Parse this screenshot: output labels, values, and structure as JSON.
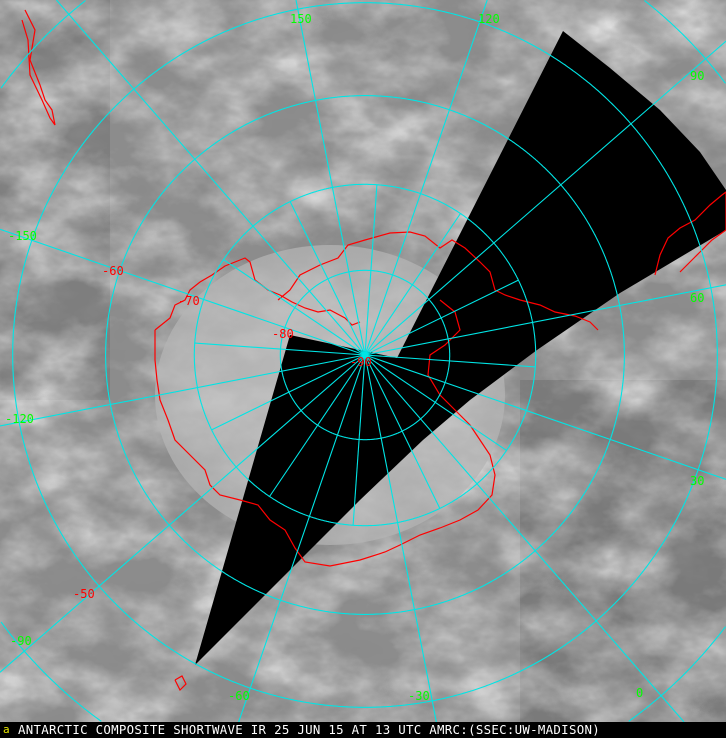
{
  "image": {
    "caption": "ANTARCTIC COMPOSITE SHORTWAVE IR 25 JUN 15 AT 13 UTC AMRC:(SSEC:UW-MADISON)",
    "projection": "polar stereographic, south pole centered",
    "logo_glyph": "a"
  },
  "colors": {
    "graticule": "#00e5e5",
    "coastline": "#ff0000",
    "longitude_labels": "#00ff00",
    "latitude_labels": "#ff0000",
    "no_data": "#000000",
    "caption_text": "#ffffff",
    "logo": "#e8e800"
  },
  "graticule": {
    "latitude_circles": [
      -80,
      -70,
      -60,
      -50,
      -40,
      -30
    ],
    "longitude_step": 30
  },
  "longitude_labels": [
    "150",
    "120",
    "90",
    "60",
    "30",
    "0",
    "-30",
    "-60",
    "-90",
    "-120",
    "-150"
  ],
  "latitude_labels": [
    "-50",
    "-60",
    "-70",
    "-80",
    "-90"
  ]
}
